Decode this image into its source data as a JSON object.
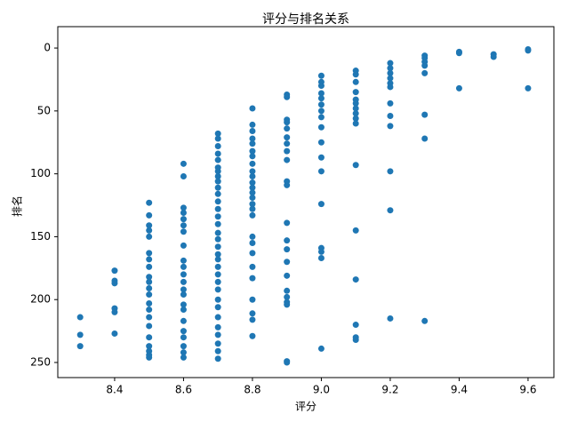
{
  "chart_data": {
    "type": "scatter",
    "title": "评分与排名关系",
    "x_label": "评分",
    "y_label": "排名",
    "x": [
      8.3,
      8.3,
      8.3,
      8.4,
      8.4,
      8.4,
      8.4,
      8.4,
      8.4,
      8.5,
      8.5,
      8.5,
      8.5,
      8.5,
      8.5,
      8.5,
      8.5,
      8.5,
      8.5,
      8.5,
      8.5,
      8.5,
      8.5,
      8.5,
      8.5,
      8.5,
      8.5,
      8.5,
      8.5,
      8.5,
      8.6,
      8.6,
      8.6,
      8.6,
      8.6,
      8.6,
      8.6,
      8.6,
      8.6,
      8.6,
      8.6,
      8.6,
      8.6,
      8.6,
      8.6,
      8.6,
      8.6,
      8.6,
      8.6,
      8.6,
      8.6,
      8.6,
      8.7,
      8.7,
      8.7,
      8.7,
      8.7,
      8.7,
      8.7,
      8.7,
      8.7,
      8.7,
      8.7,
      8.7,
      8.7,
      8.7,
      8.7,
      8.7,
      8.7,
      8.7,
      8.7,
      8.7,
      8.7,
      8.7,
      8.7,
      8.7,
      8.7,
      8.7,
      8.7,
      8.7,
      8.7,
      8.7,
      8.7,
      8.7,
      8.8,
      8.8,
      8.8,
      8.8,
      8.8,
      8.8,
      8.8,
      8.8,
      8.8,
      8.8,
      8.8,
      8.8,
      8.8,
      8.8,
      8.8,
      8.8,
      8.8,
      8.8,
      8.8,
      8.8,
      8.8,
      8.8,
      8.8,
      8.8,
      8.8,
      8.8,
      8.9,
      8.9,
      8.9,
      8.9,
      8.9,
      8.9,
      8.9,
      8.9,
      8.9,
      8.9,
      8.9,
      8.9,
      8.9,
      8.9,
      8.9,
      8.9,
      8.9,
      8.9,
      8.9,
      8.9,
      8.9,
      8.9,
      9.0,
      9.0,
      9.0,
      9.0,
      9.0,
      9.0,
      9.0,
      9.0,
      9.0,
      9.0,
      9.0,
      9.0,
      9.0,
      9.0,
      9.0,
      9.0,
      9.0,
      9.1,
      9.1,
      9.1,
      9.1,
      9.1,
      9.1,
      9.1,
      9.1,
      9.1,
      9.1,
      9.1,
      9.1,
      9.1,
      9.1,
      9.1,
      9.1,
      9.2,
      9.2,
      9.2,
      9.2,
      9.2,
      9.2,
      9.2,
      9.2,
      9.2,
      9.2,
      9.2,
      9.2,
      9.3,
      9.3,
      9.3,
      9.3,
      9.3,
      9.3,
      9.3,
      9.3,
      9.4,
      9.4,
      9.4,
      9.5,
      9.5,
      9.6,
      9.6,
      9.6
    ],
    "values": [
      214,
      228,
      237,
      177,
      185,
      187,
      207,
      210,
      227,
      123,
      133,
      141,
      145,
      150,
      163,
      168,
      174,
      182,
      186,
      191,
      196,
      203,
      208,
      214,
      221,
      230,
      237,
      241,
      244,
      246,
      92,
      102,
      127,
      131,
      136,
      141,
      146,
      157,
      169,
      174,
      180,
      186,
      192,
      196,
      204,
      208,
      217,
      225,
      230,
      237,
      242,
      246,
      68,
      72,
      78,
      84,
      89,
      95,
      98,
      102,
      106,
      111,
      116,
      122,
      128,
      134,
      140,
      147,
      152,
      158,
      164,
      168,
      174,
      180,
      186,
      192,
      200,
      206,
      214,
      222,
      228,
      235,
      241,
      247,
      48,
      61,
      66,
      72,
      76,
      82,
      86,
      92,
      98,
      102,
      107,
      111,
      115,
      119,
      124,
      128,
      133,
      150,
      155,
      163,
      174,
      183,
      200,
      211,
      216,
      229,
      37,
      39,
      57,
      59,
      64,
      71,
      76,
      82,
      89,
      106,
      109,
      139,
      153,
      160,
      170,
      181,
      193,
      198,
      202,
      204,
      249,
      250,
      22,
      27,
      30,
      36,
      40,
      45,
      50,
      55,
      63,
      75,
      87,
      98,
      124,
      159,
      162,
      167,
      239,
      18,
      21,
      27,
      35,
      41,
      44,
      48,
      52,
      56,
      60,
      93,
      145,
      184,
      220,
      230,
      232,
      12,
      16,
      20,
      24,
      28,
      31,
      44,
      54,
      62,
      98,
      129,
      215,
      6,
      8,
      11,
      14,
      20,
      53,
      72,
      217,
      3,
      4,
      32,
      5,
      7,
      1,
      2,
      32
    ],
    "color": "#1f77b4",
    "xlim": [
      8.235,
      9.675
    ],
    "xticks": [
      8.4,
      8.6,
      8.8,
      {
        "value": 9,
        "label": "9.0"
      },
      9.2,
      9.4,
      9.6
    ],
    "ylim": [
      262,
      -17
    ],
    "y_inverted": true,
    "yticks": [
      0,
      50,
      100,
      150,
      200,
      250
    ]
  }
}
